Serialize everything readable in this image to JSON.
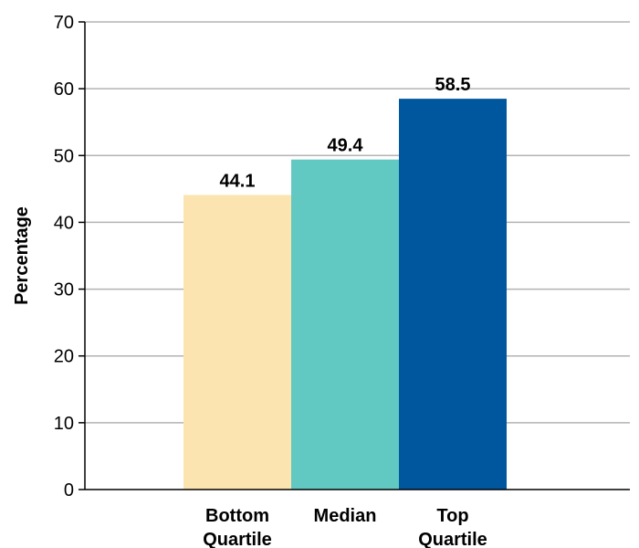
{
  "chart_data": {
    "type": "bar",
    "title": "",
    "xlabel": "",
    "ylabel": "Percentage",
    "ylim": [
      0,
      70
    ],
    "yticks": [
      0,
      10,
      20,
      30,
      40,
      50,
      60,
      70
    ],
    "grid": true,
    "legend": "none",
    "categories": [
      [
        "Bottom",
        "Quartile"
      ],
      [
        "Median"
      ],
      [
        "Top",
        "Quartile"
      ]
    ],
    "values": [
      44.1,
      49.4,
      58.5
    ],
    "value_labels": [
      "44.1",
      "49.4",
      "58.5"
    ],
    "colors": [
      "#fce4b0",
      "#62c8c2",
      "#00579e"
    ]
  }
}
